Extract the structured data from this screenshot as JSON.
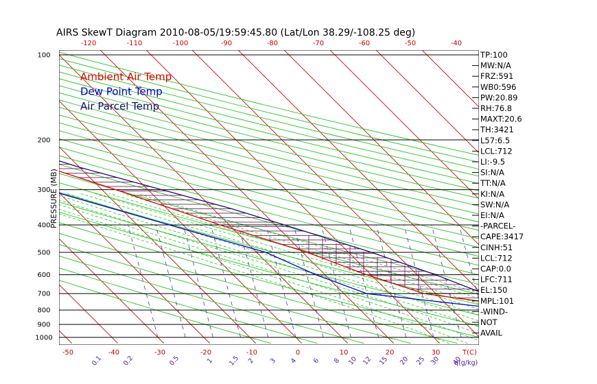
{
  "chart_data": {
    "type": "skewt",
    "title": "AIRS SkewT Diagram 2010-08-05/19:59:45.80 (Lat/Lon 38.29/-108.25 deg)",
    "ylabel": "PRESSURE (MB)",
    "pressure_ticks": [
      100,
      200,
      300,
      400,
      500,
      600,
      700,
      800,
      900,
      1000
    ],
    "temp_ticks_top": [
      -120,
      -110,
      -100,
      -90,
      -80,
      -70,
      -60,
      -50,
      -40
    ],
    "temp_ticks_bottom": [
      -50,
      -40,
      -30,
      -20,
      -10,
      0,
      10,
      20,
      30
    ],
    "bottom_unit_label": "T(C)",
    "mixing_ratio_ticks": [
      "0.1",
      "0.2",
      "0.5",
      "1",
      "1.5",
      "2",
      "3",
      "4",
      "6",
      "8",
      "10",
      "12",
      "15",
      "20",
      "25",
      "30",
      "40"
    ],
    "mixing_unit_label": "q(g/kg)",
    "legend": [
      {
        "label": "Ambient Air Temp",
        "color": "#dd0000"
      },
      {
        "label": "Dew Point Temp",
        "color": "#0000cc"
      },
      {
        "label": "Air Parcel Temp",
        "color": "#1c0a6e"
      }
    ],
    "series": [
      {
        "name": "Ambient Air Temp",
        "color": "#dd0000",
        "points": [
          [
            100,
            -72
          ],
          [
            150,
            -65
          ],
          [
            200,
            -60
          ],
          [
            250,
            -47
          ],
          [
            300,
            -37
          ],
          [
            400,
            -22
          ],
          [
            500,
            -9
          ],
          [
            600,
            -1
          ],
          [
            700,
            7.5
          ],
          [
            800,
            30
          ]
        ]
      },
      {
        "name": "Dew Point Temp",
        "color": "#0000cc",
        "points": [
          [
            100,
            -88
          ],
          [
            120,
            -89
          ],
          [
            150,
            -90
          ],
          [
            180,
            -88
          ],
          [
            200,
            -83
          ],
          [
            250,
            -68
          ],
          [
            300,
            -52
          ],
          [
            400,
            -33
          ],
          [
            500,
            -18
          ],
          [
            600,
            -12
          ],
          [
            700,
            -5
          ],
          [
            800,
            23
          ]
        ]
      },
      {
        "name": "Air Parcel Temp",
        "color": "#1c0a6e",
        "points": [
          [
            100,
            -86
          ],
          [
            120,
            -80
          ],
          [
            150,
            -71
          ],
          [
            200,
            -53
          ],
          [
            250,
            -40
          ],
          [
            300,
            -27
          ],
          [
            350,
            -16
          ],
          [
            400,
            -8
          ],
          [
            500,
            5
          ],
          [
            600,
            14
          ],
          [
            700,
            20.5
          ],
          [
            800,
            30
          ]
        ]
      }
    ],
    "indices": [
      "TP:100",
      "MW:N/A",
      "FRZ:591",
      "WB0:596",
      "PW:20.89",
      "RH:76.8",
      "MAXT:20.6",
      "TH:3421",
      "L57:6.5",
      "LCL:712",
      "LI:-9.5",
      "SI:N/A",
      "TT:N/A",
      "KI:N/A",
      "SW:N/A",
      "EI:N/A",
      "-PARCEL-",
      "CAPE:3417",
      "CINH:51",
      "LCL:712",
      "CAP:0.0",
      "LFC:711",
      "EL:150",
      "MPL:101",
      "-WIND-",
      "NOT",
      "AVAIL"
    ]
  }
}
